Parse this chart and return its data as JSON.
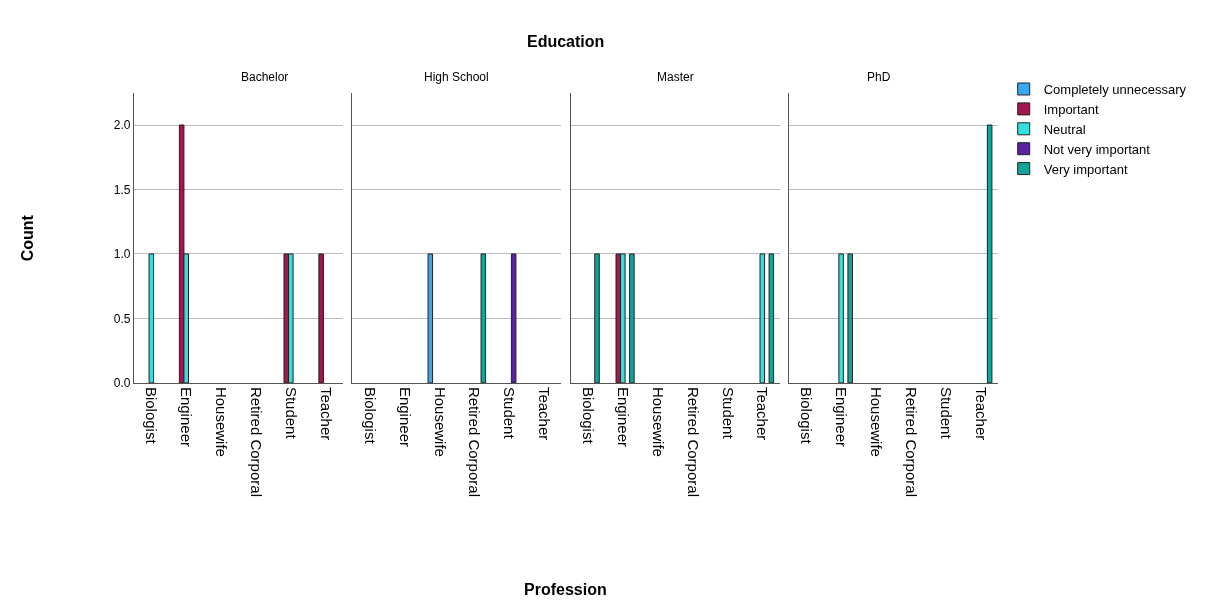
{
  "chart_data": [
    {
      "type": "bar",
      "subtitle": "Bachelor",
      "ylabel": "Count",
      "annotations": [
        "Education",
        "Profession"
      ],
      "categories": [
        "Biologist",
        "Engineer",
        "Housewife",
        "Retired Corporal",
        "Student",
        "Teacher"
      ],
      "ylim": [
        0,
        2.25
      ],
      "yticks": [
        {
          "value": 0,
          "label": "0.0"
        },
        {
          "value": 0.5,
          "label": "0.5"
        },
        {
          "value": 1,
          "label": "1.0"
        },
        {
          "value": 1.5,
          "label": "1.5"
        },
        {
          "value": 2,
          "label": "2.0"
        }
      ],
      "grid": "y",
      "legend": "top right",
      "series": [
        {
          "name": "Completely unnecessary",
          "color": "#3aa8f0",
          "values": [
            null,
            null,
            null,
            null,
            null,
            null
          ]
        },
        {
          "name": "Important",
          "color": "#a3164f",
          "values": [
            null,
            2,
            null,
            null,
            1,
            1
          ]
        },
        {
          "name": "Neutral",
          "color": "#33e0e0",
          "values": [
            1,
            1,
            null,
            null,
            1,
            null
          ]
        },
        {
          "name": "Not very important",
          "color": "#5a22a0",
          "values": [
            null,
            null,
            null,
            null,
            null,
            null
          ]
        },
        {
          "name": "Very important",
          "color": "#12a39a",
          "values": [
            null,
            null,
            null,
            null,
            null,
            null
          ]
        }
      ]
    },
    {
      "type": "bar",
      "subtitle": "High School",
      "categories": [
        "Biologist",
        "Engineer",
        "Housewife",
        "Retired Corporal",
        "Student",
        "Teacher"
      ],
      "ylim": [
        0,
        2.25
      ],
      "yticks": [
        {
          "value": 0,
          "label": null
        },
        {
          "value": 0.5,
          "label": null
        },
        {
          "value": 1,
          "label": null
        },
        {
          "value": 1.5,
          "label": null
        },
        {
          "value": 2,
          "label": null
        }
      ],
      "grid": "y",
      "tick_labels": "x",
      "series": [
        {
          "color": "#3aa8f0",
          "values": [
            null,
            null,
            1,
            null,
            null,
            null
          ]
        },
        {
          "color": "#a3164f",
          "values": [
            null,
            null,
            null,
            null,
            null,
            null
          ]
        },
        {
          "color": "#33e0e0",
          "values": [
            null,
            null,
            null,
            null,
            null,
            null
          ]
        },
        {
          "color": "#5a22a0",
          "values": [
            null,
            null,
            null,
            null,
            1,
            null
          ]
        },
        {
          "color": "#12a39a",
          "values": [
            null,
            null,
            null,
            1,
            null,
            null
          ]
        }
      ]
    },
    {
      "type": "bar",
      "subtitle": "Master",
      "categories": [
        "Biologist",
        "Engineer",
        "Housewife",
        "Retired Corporal",
        "Student",
        "Teacher"
      ],
      "ylim": [
        0,
        2.25
      ],
      "yticks": [
        {
          "value": 0,
          "label": null
        },
        {
          "value": 0.5,
          "label": null
        },
        {
          "value": 1,
          "label": null
        },
        {
          "value": 1.5,
          "label": null
        },
        {
          "value": 2,
          "label": null
        }
      ],
      "grid": "y",
      "tick_labels": "x",
      "series": [
        {
          "color": "#3aa8f0",
          "values": [
            null,
            null,
            null,
            null,
            null,
            null
          ]
        },
        {
          "color": "#a3164f",
          "values": [
            null,
            1,
            null,
            null,
            null,
            null
          ]
        },
        {
          "color": "#33e0e0",
          "values": [
            null,
            1,
            null,
            null,
            null,
            1
          ]
        },
        {
          "color": "#5a22a0",
          "values": [
            null,
            null,
            null,
            null,
            null,
            null
          ]
        },
        {
          "color": "#12a39a",
          "values": [
            1,
            1,
            null,
            null,
            null,
            1
          ]
        }
      ]
    },
    {
      "type": "bar",
      "subtitle": "PhD",
      "categories": [
        "Biologist",
        "Engineer",
        "Housewife",
        "Retired Corporal",
        "Student",
        "Teacher"
      ],
      "ylim": [
        0,
        2.25
      ],
      "yticks": [
        {
          "value": 0,
          "label": null
        },
        {
          "value": 0.5,
          "label": null
        },
        {
          "value": 1,
          "label": null
        },
        {
          "value": 1.5,
          "label": null
        },
        {
          "value": 2,
          "label": null
        }
      ],
      "grid": "y",
      "tick_labels": "x",
      "series": [
        {
          "color": "#3aa8f0",
          "values": [
            null,
            null,
            null,
            null,
            null,
            null
          ]
        },
        {
          "color": "#a3164f",
          "values": [
            null,
            null,
            null,
            null,
            null,
            null
          ]
        },
        {
          "color": "#33e0e0",
          "values": [
            null,
            1,
            null,
            null,
            null,
            null
          ]
        },
        {
          "color": "#5a22a0",
          "values": [
            null,
            null,
            null,
            null,
            null,
            null
          ]
        },
        {
          "color": "#12a39a",
          "values": [
            null,
            1,
            null,
            null,
            null,
            2
          ]
        }
      ]
    }
  ]
}
